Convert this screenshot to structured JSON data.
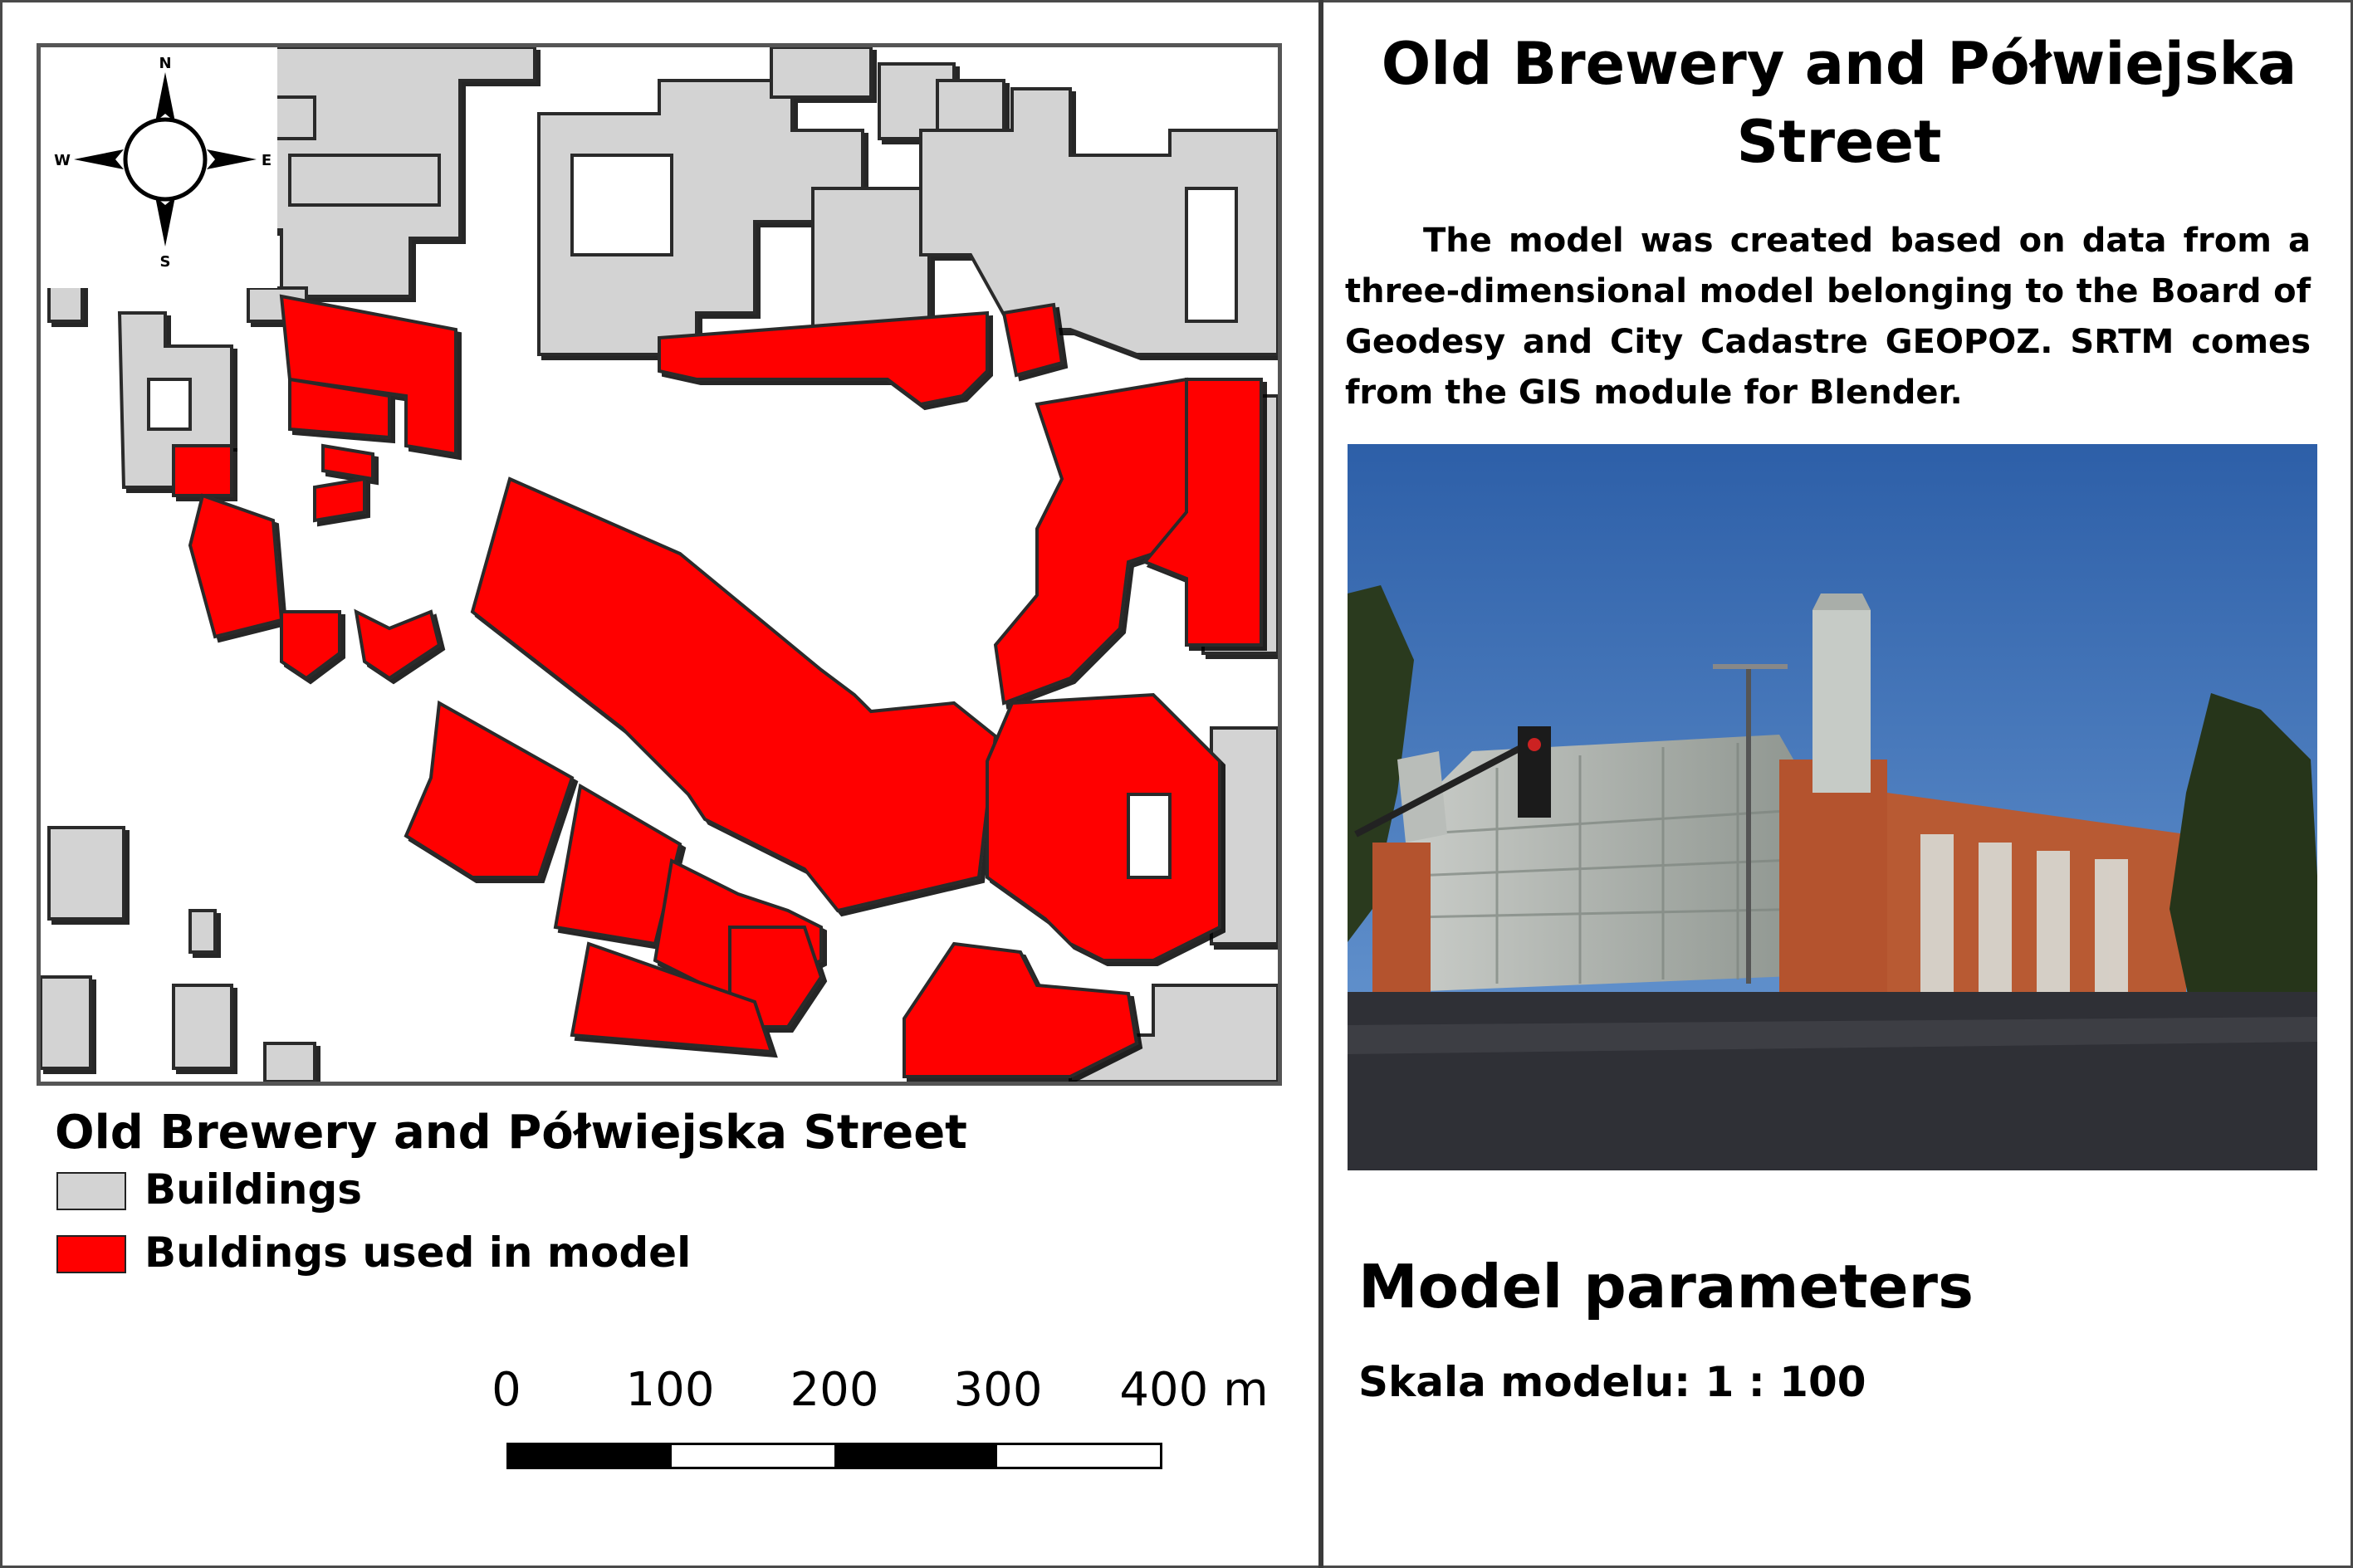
{
  "colors": {
    "buildings_fill": "#d3d3d3",
    "model_buildings_fill": "#ff0000",
    "outline": "#2b2b2b",
    "frame": "#555555"
  },
  "map": {
    "compass": {
      "north": "N",
      "south": "S",
      "east": "E",
      "west": "W"
    }
  },
  "legend": {
    "title": "Old Brewery and Półwiejska Street",
    "items": [
      {
        "label": "Buildings",
        "color": "#d3d3d3"
      },
      {
        "label": "Buldings used in model",
        "color": "#ff0000"
      }
    ]
  },
  "scalebar": {
    "ticks": [
      "0",
      "100",
      "200",
      "300",
      "400 m"
    ]
  },
  "right_panel": {
    "title": "Old Brewery and Półwiejska Street",
    "description": "The model was created based on data from a three-dimensional model belonging to the Board of Geodesy and City Cadastre GEOPOZ. SRTM comes from the GIS module for Blender.",
    "params_title": "Model parameters",
    "params_scale": "Skala modelu: 1 : 100"
  }
}
